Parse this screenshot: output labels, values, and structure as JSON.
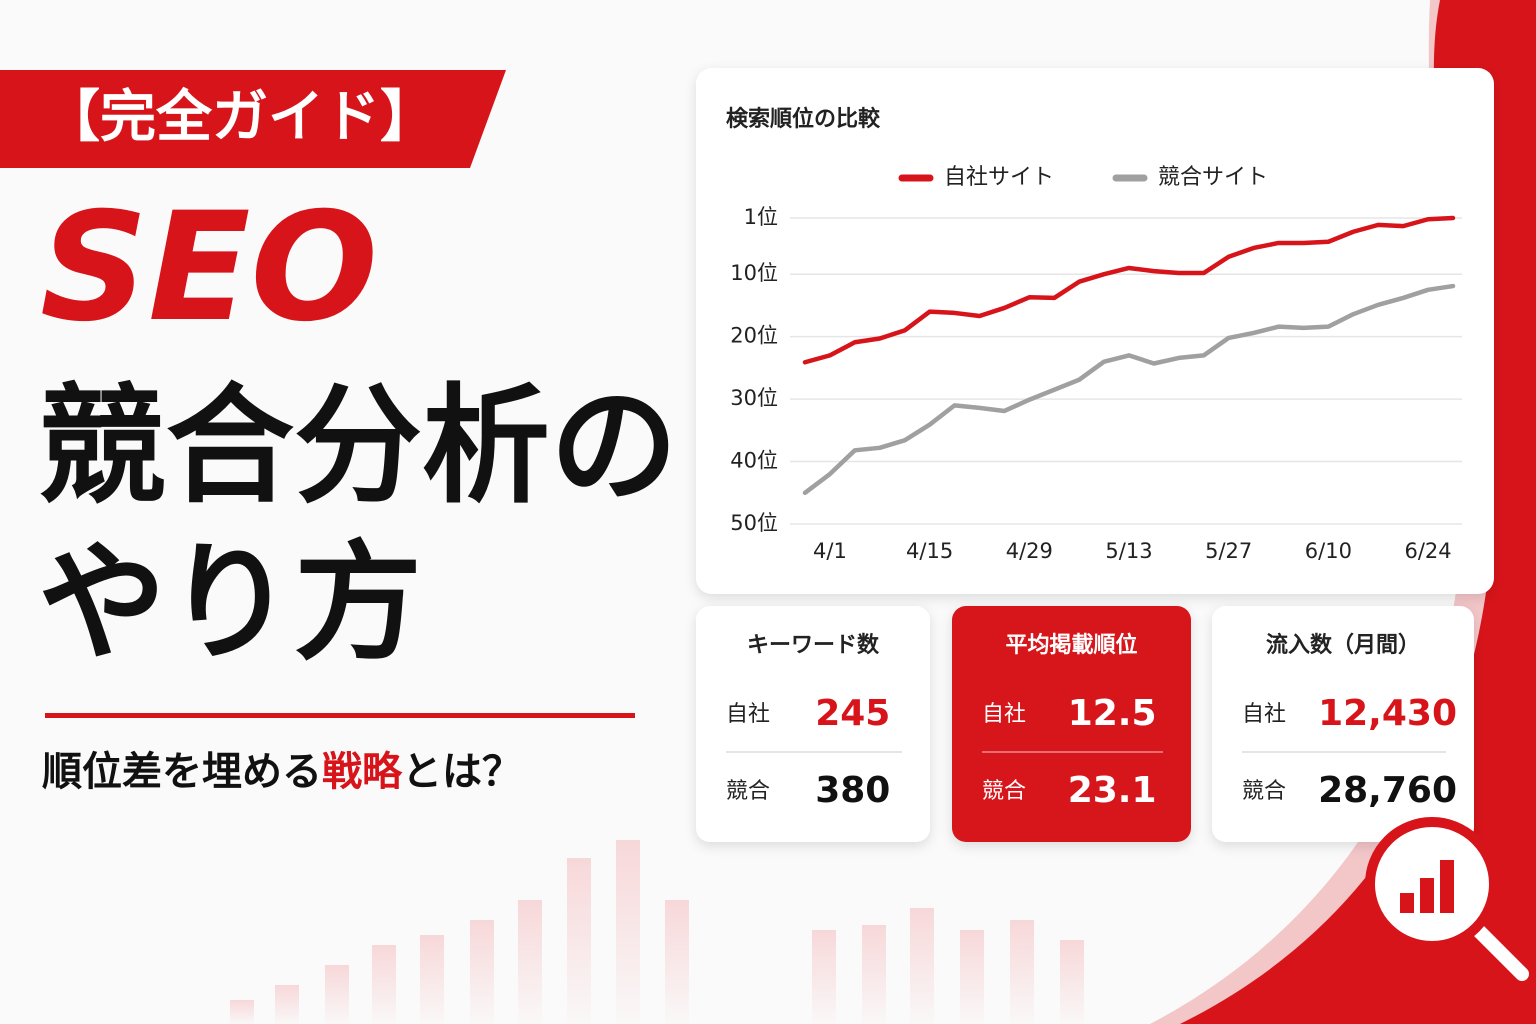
{
  "banner": "【完全ガイド】",
  "headline": {
    "line1": "SEO",
    "line2": "競合分析の",
    "line3": "やり方"
  },
  "subtitle": {
    "before": "順位差を埋める",
    "highlight": "戦略",
    "after": "とは？"
  },
  "chart_data": {
    "type": "line",
    "title": "検索順位の比較",
    "categories": [
      null,
      "4/1",
      null,
      null,
      null,
      "4/15",
      null,
      null,
      null,
      "4/29",
      null,
      null,
      null,
      "5/13",
      null,
      null,
      null,
      "5/27",
      null,
      null,
      null,
      "6/10",
      null,
      null,
      null,
      "6/24",
      null
    ],
    "series": [
      {
        "name": "自社サイト",
        "color": "#d7141a",
        "values": [
          24.1,
          23,
          20.9,
          20.3,
          19,
          16,
          16.2,
          16.7,
          15.4,
          13.7,
          13.8,
          11.2,
          10,
          9,
          9.5,
          9.8,
          9.8,
          7.2,
          5.8,
          5,
          5,
          4.8,
          3.2,
          2.1,
          2.3,
          1.2,
          1
        ]
      },
      {
        "name": "競合サイト",
        "color": "#a0a0a0",
        "values": [
          45,
          42,
          38.2,
          37.8,
          36.6,
          34.1,
          31,
          31.4,
          31.9,
          30.1,
          28.5,
          26.9,
          24,
          23,
          24.3,
          23.4,
          23,
          20.2,
          19.4,
          18.4,
          18.6,
          18.4,
          16.4,
          14.9,
          13.8,
          12.5,
          11.9
        ]
      }
    ],
    "ylim": [
      50,
      1
    ],
    "yticks": [
      {
        "value": 1,
        "label": "1位"
      },
      {
        "value": 10,
        "label": "10位"
      },
      {
        "value": 20,
        "label": "20位"
      },
      {
        "value": 30,
        "label": "30位"
      },
      {
        "value": 40,
        "label": "40位"
      },
      {
        "value": 50,
        "label": "50位"
      }
    ],
    "grid": true,
    "legend": "top"
  },
  "stats": [
    {
      "title": "キーワード数",
      "rows": [
        {
          "label": "自社",
          "value": 245
        },
        {
          "label": "競合",
          "value": 380
        }
      ]
    },
    {
      "title": "平均掲載順位",
      "rows": [
        {
          "label": "自社",
          "value": 12.5
        },
        {
          "label": "競合",
          "value": 23.1
        }
      ]
    },
    {
      "title": "流入数（月間）",
      "rows": [
        {
          "label": "自社",
          "value": {
            "value": 12430,
            "label": "12,430"
          }
        },
        {
          "label": "競合",
          "value": {
            "value": 28760,
            "label": "28,760"
          }
        }
      ]
    }
  ]
}
